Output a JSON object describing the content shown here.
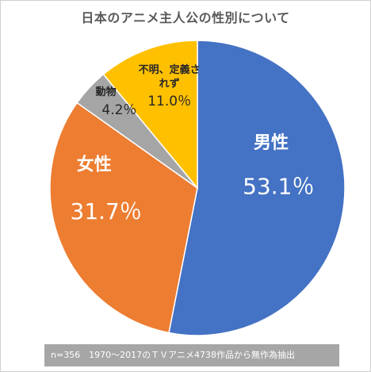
{
  "chart_data": {
    "type": "pie",
    "title": "日本のアニメ主人公の性別について",
    "slices": [
      {
        "label": "男性",
        "value": 53.1,
        "value_label": "53.1％",
        "color": "#4472c4"
      },
      {
        "label": "女性",
        "value": 31.7,
        "value_label": "31.7％",
        "color": "#ed7d31"
      },
      {
        "label": "動物",
        "value": 4.2,
        "value_label": "4.2％",
        "color": "#a5a5a5"
      },
      {
        "label": "不明、定義さ\nれず",
        "value": 11.0,
        "value_label": "11.0％",
        "color": "#ffc000"
      }
    ],
    "start_angle_deg": 0,
    "direction": "clockwise",
    "footnote": "n=356　1970〜2017のＴＶアニメ4738作品から無作為抽出"
  }
}
